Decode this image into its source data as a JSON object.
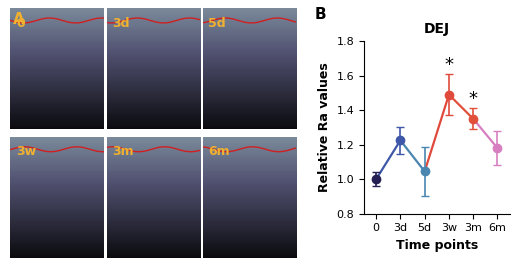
{
  "panel_labels": [
    "A",
    "B"
  ],
  "images": {
    "labels": [
      "0",
      "3d",
      "5d",
      "3w",
      "3m",
      "6m"
    ]
  },
  "chart_data": {
    "type": "line",
    "title": "DEJ",
    "x_label": "Time points",
    "y_label": "Relative Ra values",
    "categories": [
      "0",
      "3d",
      "5d",
      "3w",
      "3m",
      "6m"
    ],
    "values": [
      1.0,
      1.225,
      1.045,
      1.49,
      1.35,
      1.18
    ],
    "errors": [
      0.04,
      0.08,
      0.14,
      0.12,
      0.06,
      0.1
    ],
    "colors": [
      "#231f55",
      "#3f57a8",
      "#4a86b0",
      "#e04a3c",
      "#e0503a",
      "#d77fc0"
    ],
    "marker": "o",
    "annotations": [
      {
        "category": "3w",
        "text": "*"
      },
      {
        "category": "3m",
        "text": "*"
      }
    ],
    "ylim": [
      0.8,
      1.8
    ],
    "yticks": [
      {
        "value": 0.8,
        "label": "0.8"
      },
      {
        "value": 1.0,
        "label": "1.0"
      },
      {
        "value": 1.2,
        "label": "1.2"
      },
      {
        "value": 1.4,
        "label": "1.4"
      },
      {
        "value": 1.6,
        "label": "1.6"
      },
      {
        "value": 1.8,
        "label": "1.8"
      }
    ],
    "grid": false
  }
}
